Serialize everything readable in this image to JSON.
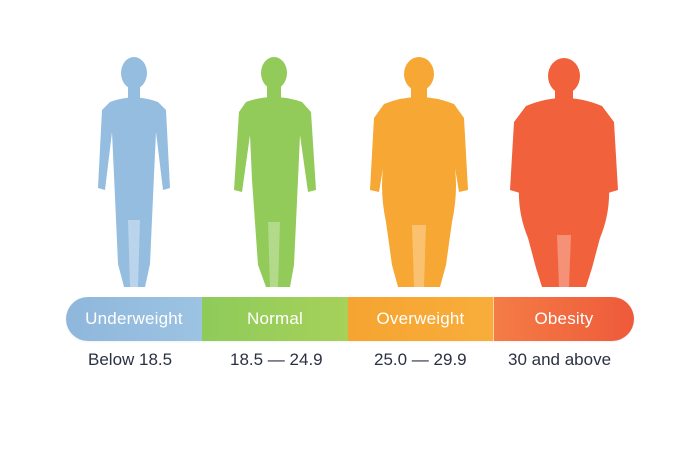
{
  "colors": {
    "underweight": "#95bde0",
    "normal": "#92cb5a",
    "overweight": "#f7a733",
    "obesity": "#f1623c",
    "text": "#2b3142"
  },
  "categories": [
    {
      "label": "Underweight",
      "range": "Below 18.5"
    },
    {
      "label": "Normal",
      "range": "18.5 — 24.9"
    },
    {
      "label": "Overweight",
      "range": "25.0 — 29.9"
    },
    {
      "label": "Obesity",
      "range": "30 and above"
    }
  ]
}
